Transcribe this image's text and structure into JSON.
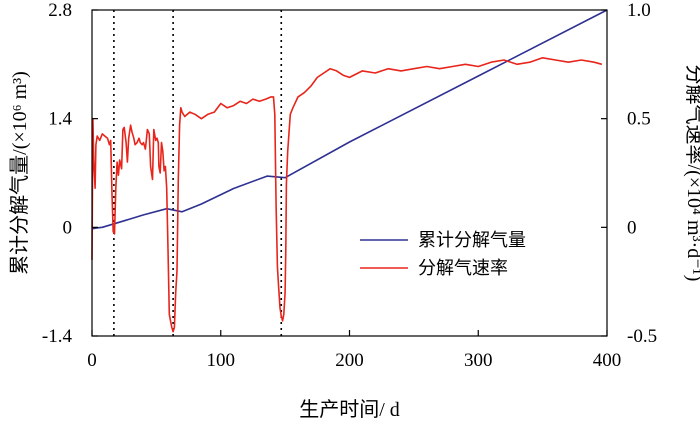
{
  "chart_data": {
    "type": "line",
    "xlabel": "生产时间/ d",
    "ylabel_left": "累计分解气量/(×10⁶ m³)",
    "ylabel_right": "分解气速率/(×10⁴ m³·d⁻¹)",
    "xlim": [
      0,
      400
    ],
    "ylim_left": [
      -1.4,
      2.8
    ],
    "ylim_right": [
      -0.5,
      1.0
    ],
    "x_ticks": [
      "0",
      "100",
      "200",
      "300",
      "400"
    ],
    "y_left_ticks": [
      "-1.4",
      "0",
      "1.4",
      "2.8"
    ],
    "y_right_ticks": [
      "-0.5",
      "0",
      "0.5",
      "1.0"
    ],
    "grid": false,
    "legend_position": "lower-right",
    "vertical_dotted_lines_x": [
      17,
      63,
      147
    ],
    "colors": {
      "cumulative": "#2e3192",
      "rate": "#e8251b"
    },
    "series": [
      {
        "name": "累计分解气量",
        "axis": "left",
        "x": [
          0,
          3,
          8,
          20,
          40,
          58,
          70,
          85,
          110,
          136,
          150,
          200,
          300,
          400
        ],
        "values": [
          -0.02,
          -0.01,
          0.0,
          0.06,
          0.16,
          0.24,
          0.2,
          0.3,
          0.5,
          0.66,
          0.64,
          1.1,
          1.95,
          2.8
        ]
      },
      {
        "name": "分解气速率",
        "axis": "right",
        "x": [
          0,
          0.7,
          1.4,
          2.4,
          3,
          4,
          6,
          8,
          10,
          12,
          13.5,
          14.5,
          15.5,
          16.5,
          17.5,
          18.5,
          19.5,
          20.5,
          21.5,
          23,
          24,
          25,
          26.5,
          27.5,
          28.5,
          30,
          31,
          32.5,
          33.5,
          35,
          36.5,
          37.5,
          39,
          40,
          41.5,
          43,
          44.5,
          45.5,
          47,
          48,
          49.5,
          50.5,
          51.5,
          52,
          53,
          54,
          55,
          56,
          57,
          58,
          59,
          60,
          61,
          62,
          63,
          64,
          65,
          66,
          67,
          68,
          69,
          70,
          72,
          76,
          80,
          85,
          90,
          95,
          100,
          105,
          110,
          115,
          120,
          125,
          130,
          135,
          139,
          141,
          142,
          143,
          144,
          145,
          146,
          147,
          148,
          149,
          150,
          150.5,
          151,
          152,
          154,
          156,
          160,
          165,
          170,
          175,
          180,
          185,
          190,
          195,
          200,
          210,
          220,
          230,
          240,
          250,
          260,
          270,
          280,
          290,
          300,
          310,
          320,
          330,
          340,
          350,
          360,
          370,
          380,
          390,
          396
        ],
        "values": [
          -0.15,
          0.5,
          0.3,
          0.18,
          0.38,
          0.42,
          0.4,
          0.43,
          0.42,
          0.41,
          0.38,
          0.4,
          0.15,
          -0.02,
          -0.03,
          0.18,
          0.3,
          0.24,
          0.31,
          0.27,
          0.45,
          0.46,
          0.39,
          0.3,
          0.41,
          0.47,
          0.44,
          0.41,
          0.38,
          0.39,
          0.41,
          0.39,
          0.38,
          0.39,
          0.36,
          0.45,
          0.43,
          0.28,
          0.22,
          0.45,
          0.4,
          0.41,
          0.39,
          0.28,
          0.25,
          0.39,
          0.35,
          0.26,
          0.28,
          0.18,
          -0.1,
          -0.4,
          -0.43,
          -0.46,
          -0.48,
          -0.46,
          -0.3,
          -0.2,
          0.22,
          0.47,
          0.55,
          0.53,
          0.51,
          0.53,
          0.52,
          0.5,
          0.52,
          0.53,
          0.57,
          0.55,
          0.56,
          0.58,
          0.57,
          0.59,
          0.58,
          0.59,
          0.6,
          0.6,
          0.52,
          0.1,
          -0.18,
          -0.28,
          -0.37,
          -0.41,
          -0.43,
          -0.4,
          -0.3,
          -0.1,
          0.2,
          0.35,
          0.52,
          0.55,
          0.6,
          0.62,
          0.65,
          0.69,
          0.71,
          0.73,
          0.72,
          0.7,
          0.69,
          0.72,
          0.71,
          0.73,
          0.72,
          0.73,
          0.74,
          0.73,
          0.74,
          0.75,
          0.74,
          0.76,
          0.77,
          0.75,
          0.76,
          0.78,
          0.77,
          0.76,
          0.77,
          0.76,
          0.75
        ]
      }
    ]
  }
}
